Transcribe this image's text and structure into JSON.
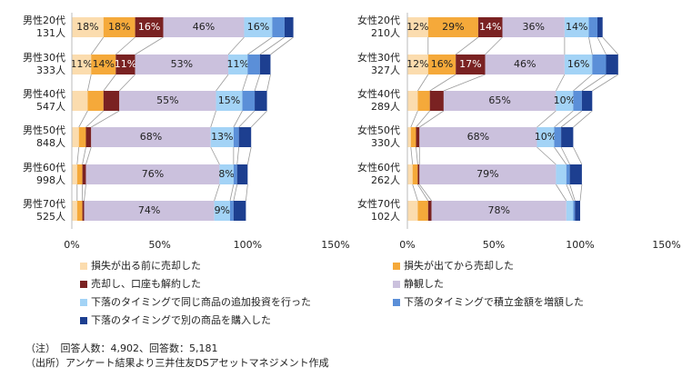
{
  "chart_data": [
    {
      "type": "stacked-barh",
      "categories": [
        "男性20代",
        "男性30代",
        "男性40代",
        "男性50代",
        "男性60代",
        "男性70代"
      ],
      "category_counts": [
        "131人",
        "333人",
        "547人",
        "848人",
        "998人",
        "525人"
      ],
      "xlim": [
        0,
        150
      ],
      "xticks": [
        {
          "value": 0,
          "label": "0%"
        },
        {
          "value": 50,
          "label": "50%"
        },
        {
          "value": 100,
          "label": "100%"
        },
        {
          "value": 150,
          "label": "150%"
        }
      ],
      "series": [
        {
          "name": "損失が出る前に売却した",
          "color": "#fbdcae",
          "values": [
            18,
            11,
            9,
            4,
            3,
            3
          ],
          "value_labels": [
            "18%",
            "11%",
            null,
            null,
            null,
            null
          ]
        },
        {
          "name": "損失が出てから売却した",
          "color": "#f5a93a",
          "values": [
            18,
            14,
            9,
            4,
            3,
            3
          ],
          "value_labels": [
            "18%",
            "14%",
            null,
            null,
            null,
            null
          ]
        },
        {
          "name": "売却し、口座も解約した",
          "color": "#7a2222",
          "values": [
            16,
            11,
            9,
            3,
            2,
            1
          ],
          "value_labels": [
            "16%",
            "11%",
            null,
            null,
            null,
            null
          ]
        },
        {
          "name": "静観した",
          "color": "#cbc1dd",
          "values": [
            46,
            53,
            55,
            68,
            76,
            74
          ],
          "value_labels": [
            "46%",
            "53%",
            "55%",
            "68%",
            "76%",
            "74%"
          ]
        },
        {
          "name": "下落のタイミングで同じ商品の追加投資を行った",
          "color": "#a3d3f6",
          "values": [
            16,
            11,
            15,
            13,
            8,
            9
          ],
          "value_labels": [
            "16%",
            "11%",
            "15%",
            "13%",
            "8%",
            "9%"
          ]
        },
        {
          "name": "下落のタイミングで積立金額を増額した",
          "color": "#5b8fd8",
          "values": [
            7,
            7,
            7,
            3,
            2,
            2
          ]
        },
        {
          "name": "下落のタイミングで別の商品を購入した",
          "color": "#1d3f90",
          "values": [
            5,
            6,
            7,
            7,
            6,
            7
          ]
        }
      ]
    },
    {
      "type": "stacked-barh",
      "categories": [
        "女性20代",
        "女性30代",
        "女性40代",
        "女性50代",
        "女性60代",
        "女性70代"
      ],
      "category_counts": [
        "210人",
        "327人",
        "289人",
        "330人",
        "262人",
        "102人"
      ],
      "xlim": [
        0,
        150
      ],
      "xticks": [
        {
          "value": 0,
          "label": "0%"
        },
        {
          "value": 50,
          "label": "50%"
        },
        {
          "value": 100,
          "label": "100%"
        },
        {
          "value": 150,
          "label": "150%"
        }
      ],
      "series": [
        {
          "color": "#fbdcae",
          "values": [
            12,
            12,
            6,
            2,
            3,
            6
          ],
          "value_labels": [
            "12%",
            "12%",
            null,
            null,
            null,
            null
          ]
        },
        {
          "color": "#f5a93a",
          "values": [
            29,
            16,
            7,
            3,
            3,
            6
          ],
          "value_labels": [
            "29%",
            "16%",
            null,
            null,
            null,
            null
          ]
        },
        {
          "color": "#7a2222",
          "values": [
            14,
            17,
            8,
            2,
            1,
            2
          ],
          "value_labels": [
            "14%",
            "17%",
            null,
            null,
            null,
            null
          ]
        },
        {
          "color": "#cbc1dd",
          "values": [
            36,
            46,
            65,
            68,
            79,
            78
          ],
          "value_labels": [
            "36%",
            "46%",
            "65%",
            "68%",
            "79%",
            "78%"
          ]
        },
        {
          "color": "#a3d3f6",
          "values": [
            14,
            16,
            10,
            10,
            6,
            4
          ],
          "value_labels": [
            "14%",
            "16%",
            "10%",
            "10%",
            null,
            null
          ]
        },
        {
          "color": "#5b8fd8",
          "values": [
            5,
            8,
            5,
            4,
            2,
            1
          ]
        },
        {
          "color": "#1d3f90",
          "values": [
            3,
            7,
            6,
            7,
            7,
            3
          ]
        }
      ]
    }
  ],
  "notes": [
    "（注）　回答人数：4,902、回答数：5,181",
    "（出所）アンケート結果より三井住友DSアセットマネジメント作成"
  ]
}
